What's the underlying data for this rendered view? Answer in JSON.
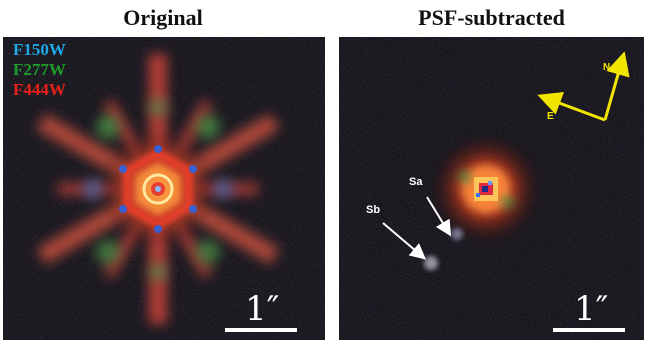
{
  "titles": {
    "left": "Original",
    "right": "PSF-subtracted"
  },
  "legend": [
    {
      "label": "F150W",
      "color": "#1fa7e6"
    },
    {
      "label": "F277W",
      "color": "#1e9c2a"
    },
    {
      "label": "F444W",
      "color": "#e8201a"
    }
  ],
  "scale_bar": {
    "left_label": "1″",
    "right_label": "1″"
  },
  "annotations": {
    "sa": "Sa",
    "sb": "Sb"
  },
  "compass": {
    "north": "N",
    "east": "E",
    "color": "#f2e600"
  }
}
